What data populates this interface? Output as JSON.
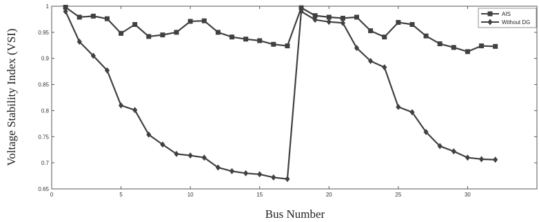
{
  "chart_data": {
    "type": "line",
    "title": "",
    "xlabel": "Bus Number",
    "ylabel": "Voltage Stability Index (VSI)",
    "xlim": [
      0,
      35
    ],
    "ylim": [
      0.65,
      1
    ],
    "x_ticks": [
      0,
      5,
      10,
      15,
      20,
      25,
      30
    ],
    "x_tick_labels": [
      "0",
      "5",
      "10",
      "15",
      "20",
      "25",
      "30"
    ],
    "y_ticks": [
      0.65,
      0.7,
      0.75,
      0.8,
      0.85,
      0.9,
      0.95,
      1
    ],
    "y_tick_labels": [
      "0.65",
      "0.7",
      "0.75",
      "0.8",
      "0.85",
      "0.9",
      "0.95",
      "1"
    ],
    "grid": false,
    "legend_position": "top-right",
    "x": [
      1,
      2,
      3,
      4,
      5,
      6,
      7,
      8,
      9,
      10,
      11,
      12,
      13,
      14,
      15,
      16,
      17,
      18,
      19,
      20,
      21,
      22,
      23,
      24,
      25,
      26,
      27,
      28,
      29,
      30,
      31,
      32
    ],
    "series": [
      {
        "name": "AIS",
        "marker": "square",
        "color": "#404040",
        "values": [
          0.998,
          0.979,
          0.981,
          0.976,
          0.948,
          0.965,
          0.942,
          0.945,
          0.95,
          0.971,
          0.972,
          0.95,
          0.941,
          0.937,
          0.934,
          0.927,
          0.924,
          0.997,
          0.982,
          0.979,
          0.977,
          0.979,
          0.953,
          0.941,
          0.969,
          0.965,
          0.943,
          0.928,
          0.921,
          0.913,
          0.924,
          0.923
        ]
      },
      {
        "name": "Without DG",
        "marker": "diamond",
        "color": "#404040",
        "values": [
          0.99,
          0.932,
          0.905,
          0.877,
          0.81,
          0.801,
          0.754,
          0.735,
          0.717,
          0.714,
          0.71,
          0.691,
          0.684,
          0.68,
          0.678,
          0.672,
          0.669,
          0.99,
          0.974,
          0.97,
          0.968,
          0.92,
          0.895,
          0.883,
          0.807,
          0.797,
          0.759,
          0.732,
          0.722,
          0.71,
          0.707,
          0.706
        ]
      }
    ]
  }
}
